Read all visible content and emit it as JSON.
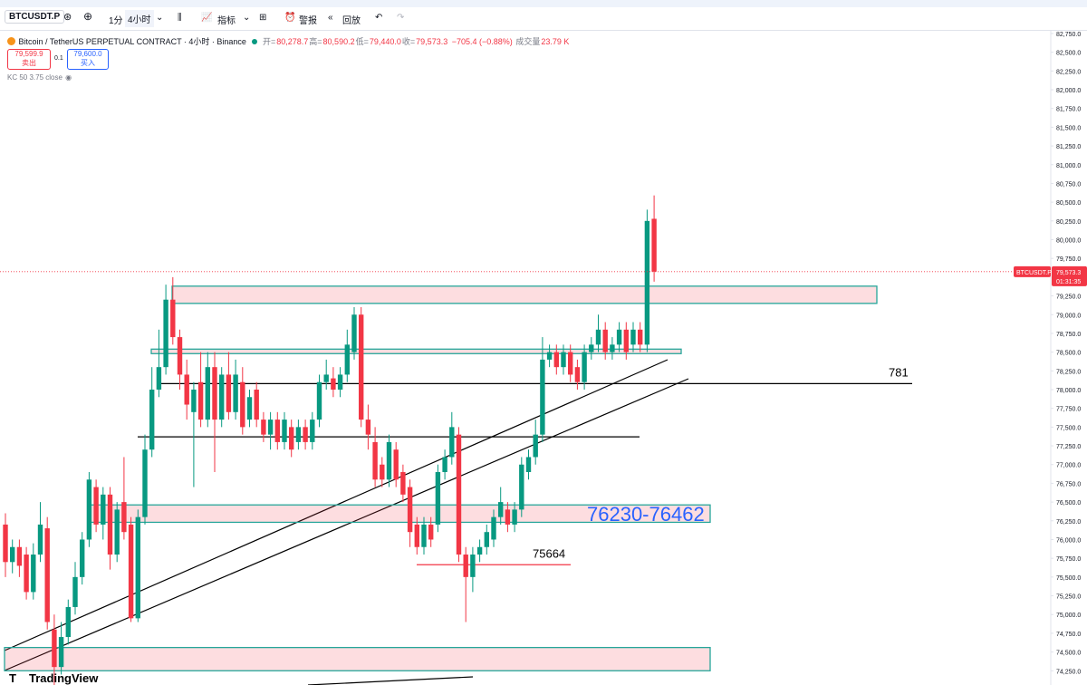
{
  "toolbar": {
    "symbol": "BTCUSDT.P",
    "intervals": [
      "1分",
      "4小时"
    ],
    "indicators": "指标",
    "alert": "警报",
    "replay": "回放"
  },
  "legend": {
    "title": "Bitcoin / TetherUS PERPETUAL CONTRACT · 4小时 · Binance",
    "ohlc": [
      {
        "label": "开=",
        "value": "80,278.7"
      },
      {
        "label": "高=",
        "value": "80,590.2"
      },
      {
        "label": "低=",
        "value": "79,440.0"
      },
      {
        "label": "收=",
        "value": "79,573.3"
      }
    ],
    "change": "−705.4 (−0.88%)",
    "volume_label": "成交量",
    "volume": "23.79 K",
    "indicator": "KC 50 3.75 close"
  },
  "trade": {
    "sell_price": "79,599.9",
    "sell": "卖出",
    "quantity": "0.1",
    "buy_price": "79,600.0",
    "buy": "买入"
  },
  "chart_data": {
    "type": "candlestick",
    "up_color": "#089981",
    "down_color": "#f23645",
    "grid": false,
    "ylim": [
      74060,
      82810
    ],
    "yticks": [
      {
        "value": 82750,
        "label": "82,750.0"
      },
      {
        "value": 82500,
        "label": "82,500.0"
      },
      {
        "value": 82250,
        "label": "82,250.0"
      },
      {
        "value": 82000,
        "label": "82,000.0"
      },
      {
        "value": 81750,
        "label": "81,750.0"
      },
      {
        "value": 81500,
        "label": "81,500.0"
      },
      {
        "value": 81250,
        "label": "81,250.0"
      },
      {
        "value": 81000,
        "label": "81,000.0"
      },
      {
        "value": 80750,
        "label": "80,750.0"
      },
      {
        "value": 80500,
        "label": "80,500.0"
      },
      {
        "value": 80250,
        "label": "80,250.0"
      },
      {
        "value": 80000,
        "label": "80,000.0"
      },
      {
        "value": 79750,
        "label": "79,750.0"
      },
      {
        "value": 79250,
        "label": "79,250.0"
      },
      {
        "value": 79000,
        "label": "79,000.0"
      },
      {
        "value": 78750,
        "label": "78,750.0"
      },
      {
        "value": 78500,
        "label": "78,500.0"
      },
      {
        "value": 78250,
        "label": "78,250.0"
      },
      {
        "value": 78000,
        "label": "78,000.0"
      },
      {
        "value": 77750,
        "label": "77,750.0"
      },
      {
        "value": 77500,
        "label": "77,500.0"
      },
      {
        "value": 77250,
        "label": "77,250.0"
      },
      {
        "value": 77000,
        "label": "77,000.0"
      },
      {
        "value": 76750,
        "label": "76,750.0"
      },
      {
        "value": 76500,
        "label": "76,500.0"
      },
      {
        "value": 76250,
        "label": "76,250.0"
      },
      {
        "value": 76000,
        "label": "76,000.0"
      },
      {
        "value": 75750,
        "label": "75,750.0"
      },
      {
        "value": 75500,
        "label": "75,500.0"
      },
      {
        "value": 75250,
        "label": "75,250.0"
      },
      {
        "value": 75000,
        "label": "75,000.0"
      },
      {
        "value": 74750,
        "label": "74,750.0"
      },
      {
        "value": 74500,
        "label": "74,500.0"
      },
      {
        "value": 74250,
        "label": "74,250.0"
      }
    ],
    "open": [
      76200,
      75700,
      75900,
      75800,
      75300,
      75800,
      76150,
      74800,
      74300,
      74700,
      75100,
      75500,
      76000,
      76700,
      76200,
      76600,
      75800,
      76500,
      76200,
      74950,
      76300,
      77200,
      78000,
      78300,
      79200,
      78700,
      78200,
      77700,
      78100,
      77600,
      78300,
      77600,
      78200,
      77700,
      78100,
      77600,
      78000,
      77600,
      77400,
      77600,
      77300,
      77500,
      77300,
      77500,
      77300,
      77600,
      78100,
      78150,
      78000,
      78200,
      78500,
      79000,
      77600,
      77300,
      77000,
      76800,
      77200,
      76900,
      76700,
      76200,
      75900,
      76200,
      76200,
      76900,
      77100,
      77400,
      75800,
      75500,
      75800,
      75900,
      76000,
      76300,
      76400,
      76200,
      76400,
      76900,
      77100,
      77400,
      78400,
      78500,
      78300,
      78500,
      78300,
      78100,
      78500,
      78600,
      78800,
      78500,
      78600,
      78800,
      78600,
      78800,
      78600,
      80278.7
    ],
    "high": [
      76350,
      76000,
      76000,
      75900,
      75950,
      76500,
      76300,
      75000,
      74900,
      75200,
      75700,
      76100,
      76900,
      76800,
      76700,
      76700,
      76500,
      77100,
      76300,
      76400,
      77400,
      78300,
      78800,
      79400,
      79500,
      78800,
      78400,
      78100,
      78500,
      78500,
      78500,
      78300,
      78500,
      78400,
      78300,
      78000,
      78100,
      77700,
      77700,
      77700,
      77700,
      77600,
      77600,
      77600,
      77700,
      78200,
      78400,
      78300,
      78300,
      78800,
      79100,
      79100,
      77800,
      77500,
      77100,
      77400,
      77300,
      77000,
      76800,
      76300,
      76300,
      76300,
      77000,
      77200,
      77700,
      77500,
      75900,
      75900,
      76000,
      76200,
      76400,
      76700,
      76500,
      76500,
      77100,
      77200,
      77600,
      78700,
      78600,
      78600,
      78600,
      78600,
      78400,
      78600,
      78700,
      79000,
      78900,
      78700,
      78900,
      78900,
      78900,
      78900,
      80400,
      80590.2
    ],
    "low": [
      75500,
      75550,
      75500,
      75200,
      75200,
      75700,
      74800,
      74000,
      74200,
      74600,
      75000,
      75400,
      75900,
      76100,
      76000,
      75600,
      75700,
      76000,
      74900,
      74900,
      76200,
      77100,
      77900,
      78200,
      78600,
      78000,
      77600,
      76700,
      77500,
      77500,
      76900,
      77500,
      77600,
      77600,
      77400,
      77500,
      77500,
      77300,
      77200,
      77200,
      77200,
      77100,
      77200,
      77200,
      77200,
      77500,
      78000,
      77900,
      77900,
      78100,
      78400,
      77500,
      77200,
      76700,
      76700,
      76700,
      76700,
      76500,
      75900,
      75800,
      75800,
      75900,
      76100,
      76800,
      77000,
      75700,
      74900,
      75300,
      75700,
      75800,
      75900,
      76200,
      76100,
      76100,
      76300,
      76800,
      77000,
      77300,
      78300,
      78200,
      78200,
      78100,
      78000,
      78000,
      78400,
      78500,
      78400,
      78400,
      78500,
      78400,
      78500,
      78500,
      78500,
      79440
    ],
    "close": [
      75700,
      75900,
      75650,
      75300,
      75800,
      76200,
      74900,
      74300,
      74700,
      75100,
      75500,
      76000,
      76800,
      76200,
      76600,
      75800,
      76400,
      76100,
      74950,
      76300,
      77200,
      78000,
      78300,
      79200,
      78700,
      78200,
      77800,
      78000,
      77600,
      78300,
      77600,
      78200,
      77700,
      78200,
      77500,
      77900,
      77600,
      77400,
      77600,
      77300,
      77600,
      77200,
      77500,
      77300,
      77600,
      78100,
      78200,
      78000,
      78200,
      78600,
      79000,
      77600,
      77400,
      76800,
      76800,
      77300,
      76800,
      76600,
      76100,
      75900,
      76200,
      76000,
      76900,
      77100,
      77500,
      75800,
      75500,
      75800,
      75900,
      76100,
      76300,
      76500,
      76200,
      76400,
      77000,
      77100,
      77400,
      78400,
      78500,
      78300,
      78500,
      78200,
      78100,
      78500,
      78600,
      78800,
      78500,
      78600,
      78800,
      78500,
      78800,
      78600,
      80250,
      79573.3
    ],
    "zones": [
      {
        "low": 79150,
        "high": 79380
      },
      {
        "low": 78480,
        "high": 78540
      },
      {
        "low": 76230,
        "high": 76462,
        "label": "76230-76462",
        "label_color": "#2962ff"
      },
      {
        "low": 74250,
        "high": 74560
      }
    ],
    "levels": [
      {
        "value": 78080,
        "label": "781",
        "color": "#000000"
      },
      {
        "value": 77370,
        "color": "#000000"
      },
      {
        "value": 75664,
        "color": "#f23645"
      }
    ],
    "price_label": {
      "symbol": "BTCUSDT.P",
      "price": "79,573.3",
      "countdown": "01:31:35"
    }
  },
  "branding": "TradingView"
}
